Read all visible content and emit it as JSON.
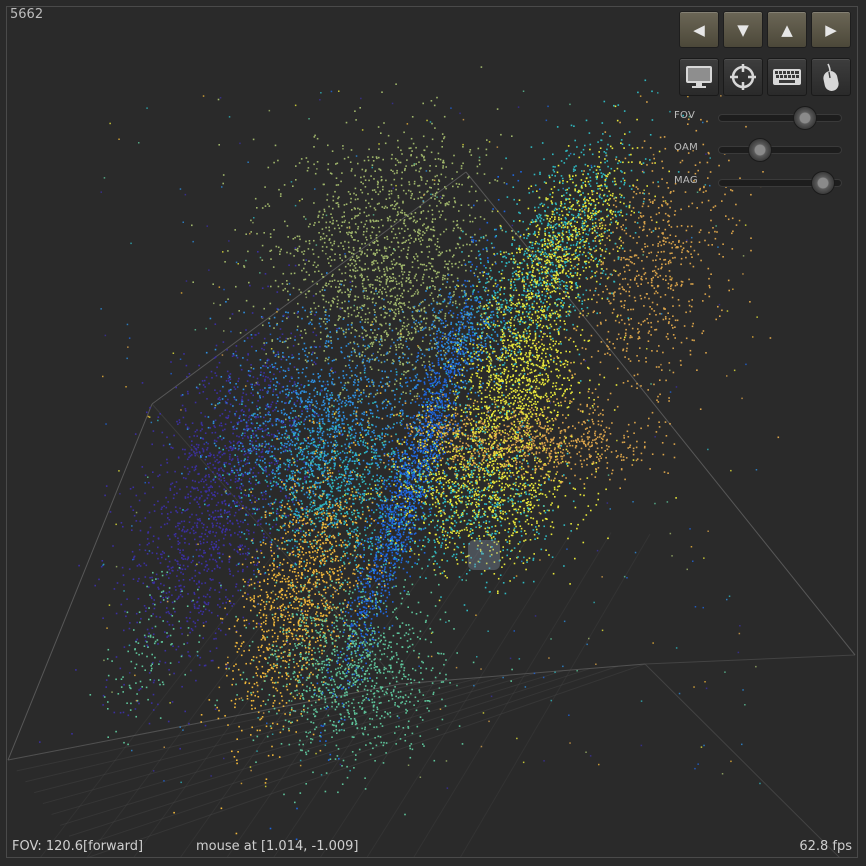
{
  "counter": "5662",
  "status": {
    "fov": "FOV: 120.6[forward]",
    "mouse": "mouse at [1.014, -1.009]",
    "fps": "62.8 fps"
  },
  "nav_buttons": [
    {
      "name": "nav-left-button",
      "icon": "triangle-left-icon",
      "glyph": "◀"
    },
    {
      "name": "nav-down-button",
      "icon": "triangle-down-icon",
      "glyph": "▼"
    },
    {
      "name": "nav-up-button",
      "icon": "triangle-up-icon",
      "glyph": "▲"
    },
    {
      "name": "nav-right-button",
      "icon": "triangle-right-icon",
      "glyph": "▶"
    }
  ],
  "tool_buttons": [
    {
      "name": "monitor-button",
      "icon": "monitor-icon"
    },
    {
      "name": "crosshair-button",
      "icon": "crosshair-icon"
    },
    {
      "name": "keyboard-button",
      "icon": "keyboard-icon"
    },
    {
      "name": "mouse-button",
      "icon": "mouse-icon"
    }
  ],
  "sliders": [
    {
      "name": "fov",
      "label": "FOV",
      "value": 0.7
    },
    {
      "name": "oam",
      "label": "OAM",
      "value": 0.34
    },
    {
      "name": "mag",
      "label": "MAG",
      "value": 0.85
    }
  ],
  "colors": {
    "background": "#2a2a2a",
    "grid": "#5c5c5c",
    "clusters": [
      "#9fb56a",
      "#1f66e0",
      "#2d8fe0",
      "#3b2fa0",
      "#f2b83a",
      "#d9a34a",
      "#e8e83a",
      "#2fb8c0",
      "#5ec49a"
    ]
  }
}
